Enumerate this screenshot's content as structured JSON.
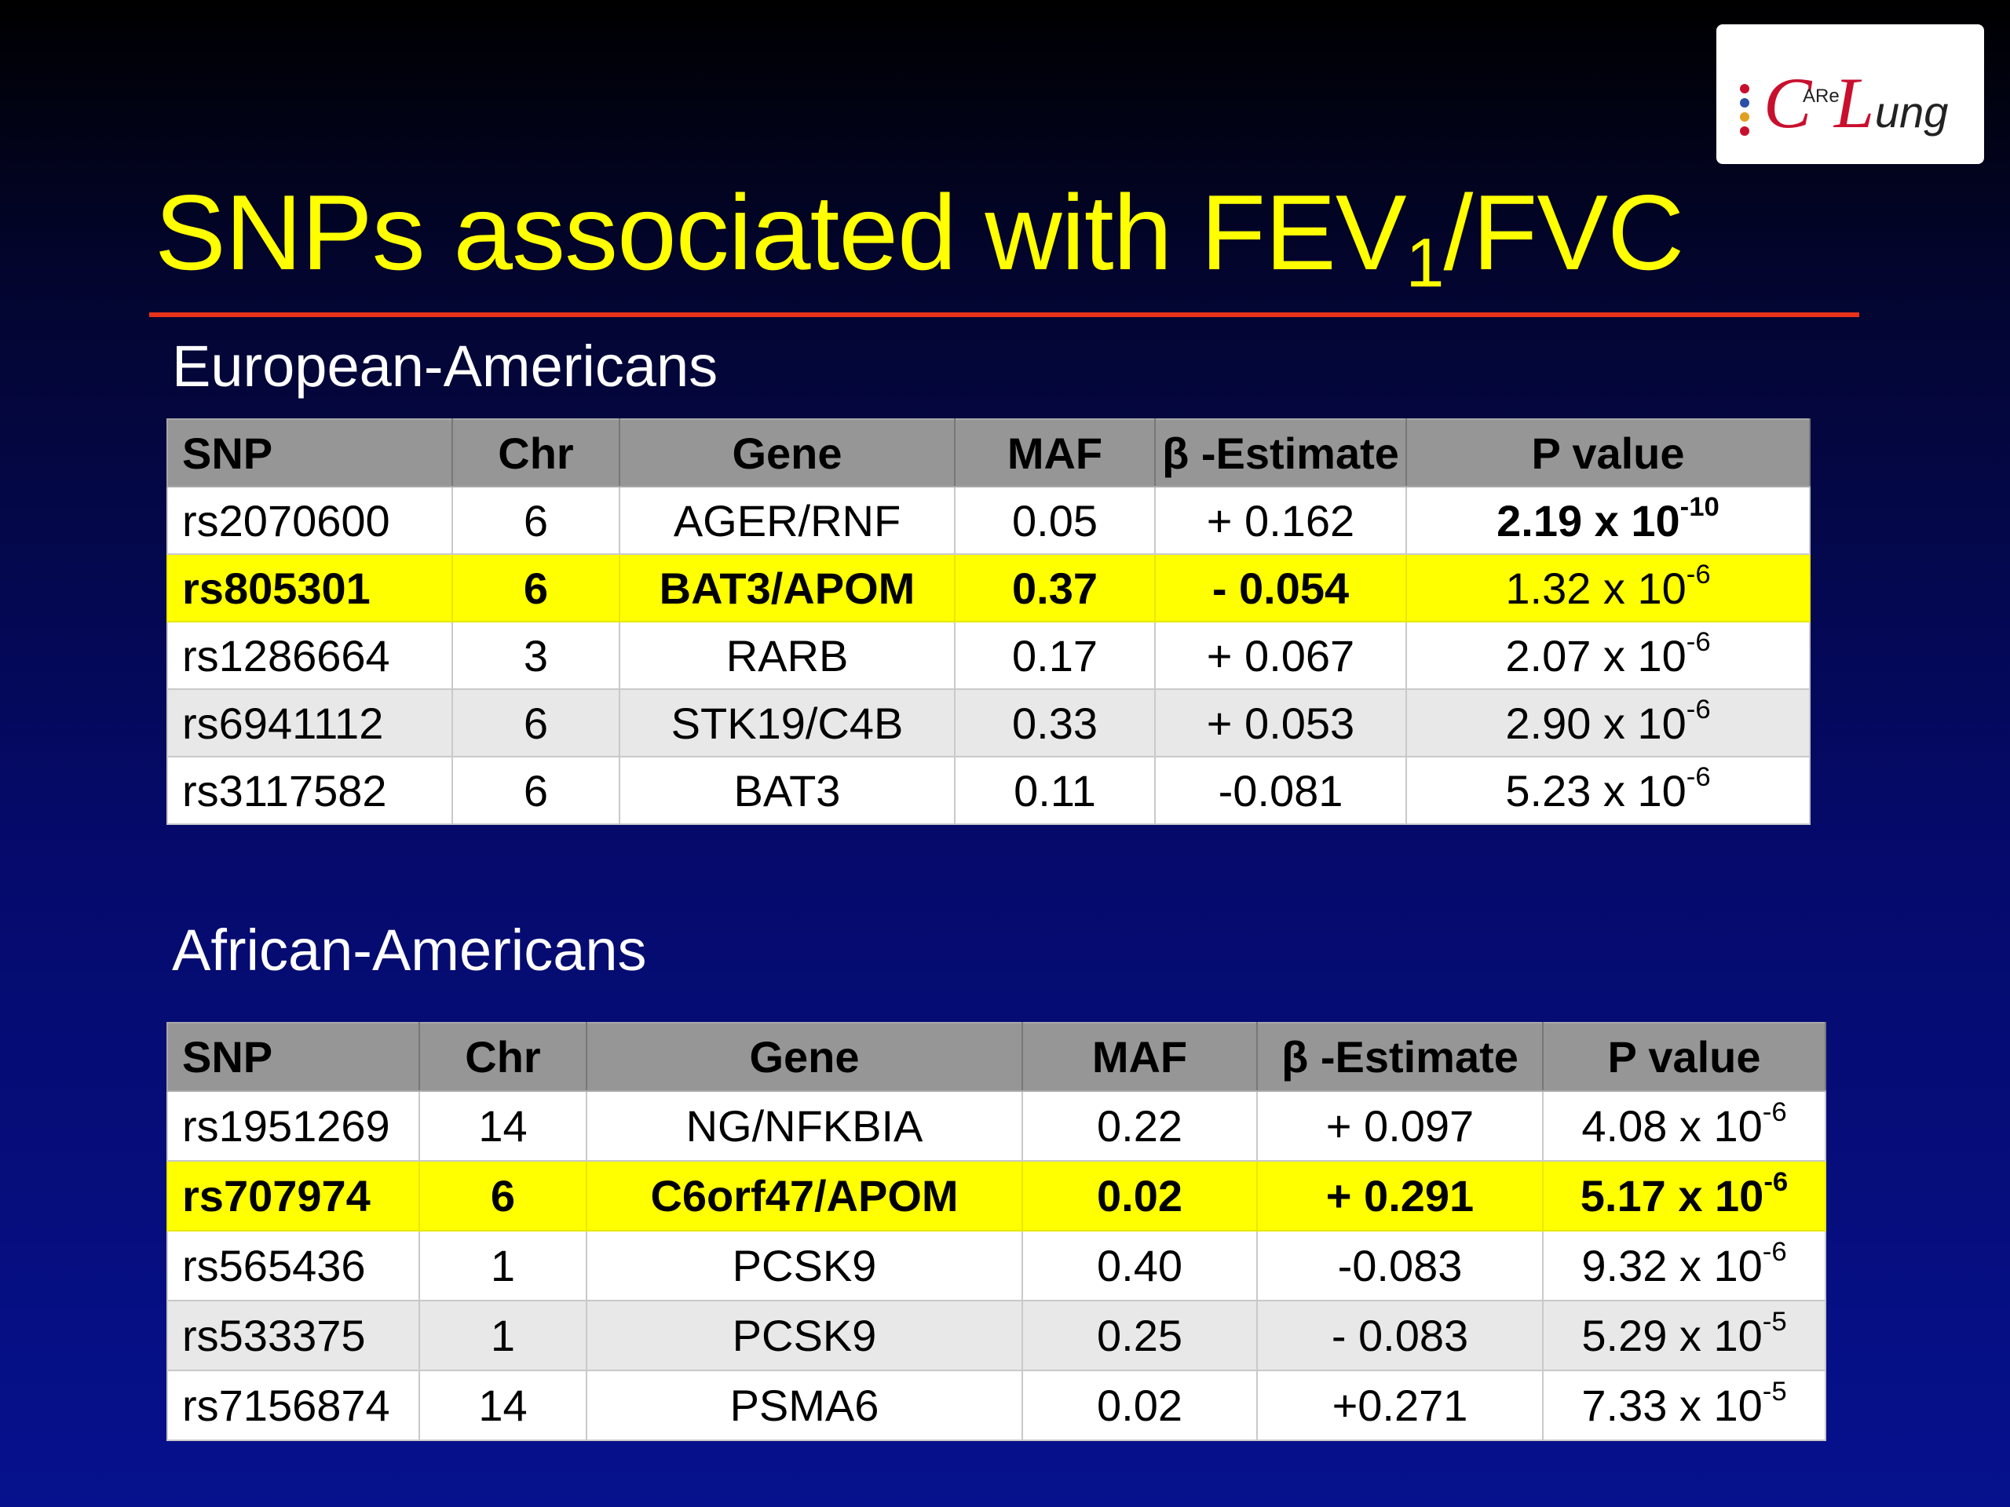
{
  "title": {
    "text": "SNPs associated with FEV",
    "subscript": "1",
    "suffix": "/FVC"
  },
  "logo": {
    "c": "C",
    "are": "ARe",
    "l": "L",
    "ung": "ung"
  },
  "columns": [
    "SNP",
    "Chr",
    "Gene",
    "MAF",
    "β -Estimate",
    "P value"
  ],
  "european": {
    "label": "European-Americans",
    "rows": [
      {
        "snp": "rs2070600",
        "chr": "6",
        "gene": "AGER/RNF",
        "maf": "0.05",
        "beta": "+ 0.162",
        "p_base": "2.19 x 10",
        "p_exp": "-10",
        "style": "white",
        "bold": false,
        "p_bold": true
      },
      {
        "snp": "rs805301",
        "chr": "6",
        "gene": "BAT3/APOM",
        "maf": "0.37",
        "beta": "- 0.054",
        "p_base": "1.32 x 10",
        "p_exp": "-6",
        "style": "yellow",
        "bold": true,
        "p_bold": false
      },
      {
        "snp": "rs1286664",
        "chr": "3",
        "gene": "RARB",
        "maf": "0.17",
        "beta": "+ 0.067",
        "p_base": "2.07 x 10",
        "p_exp": "-6",
        "style": "white",
        "bold": false,
        "p_bold": false
      },
      {
        "snp": "rs6941112",
        "chr": "6",
        "gene": "STK19/C4B",
        "maf": "0.33",
        "beta": "+ 0.053",
        "p_base": "2.90 x 10",
        "p_exp": "-6",
        "style": "grey",
        "bold": false,
        "p_bold": false
      },
      {
        "snp": "rs3117582",
        "chr": "6",
        "gene": "BAT3",
        "maf": "0.11",
        "beta": "-0.081",
        "p_base": "5.23 x 10",
        "p_exp": "-6",
        "style": "white",
        "bold": false,
        "p_bold": false
      }
    ]
  },
  "african": {
    "label": "African-Americans",
    "rows": [
      {
        "snp": "rs1951269",
        "chr": "14",
        "gene": "NG/NFKBIA",
        "maf": "0.22",
        "beta": "+ 0.097",
        "p_base": "4.08 x 10",
        "p_exp": "-6",
        "style": "white",
        "bold": false,
        "p_bold": false
      },
      {
        "snp": "rs707974",
        "chr": "6",
        "gene": "C6orf47/APOM",
        "maf": "0.02",
        "beta": "+ 0.291",
        "p_base": "5.17 x 10",
        "p_exp": "-6",
        "style": "yellow",
        "bold": true,
        "p_bold": true
      },
      {
        "snp": "rs565436",
        "chr": "1",
        "gene": "PCSK9",
        "maf": "0.40",
        "beta": "-0.083",
        "p_base": "9.32 x 10",
        "p_exp": "-6",
        "style": "white",
        "bold": false,
        "p_bold": false
      },
      {
        "snp": "rs533375",
        "chr": "1",
        "gene": "PCSK9",
        "maf": "0.25",
        "beta": "- 0.083",
        "p_base": "5.29 x 10",
        "p_exp": "-5",
        "style": "grey",
        "bold": false,
        "p_bold": false
      },
      {
        "snp": "rs7156874",
        "chr": "14",
        "gene": "PSMA6",
        "maf": "0.02",
        "beta": "+0.271",
        "p_base": "7.33 x 10",
        "p_exp": "-5",
        "style": "white",
        "bold": false,
        "p_bold": false
      }
    ]
  }
}
